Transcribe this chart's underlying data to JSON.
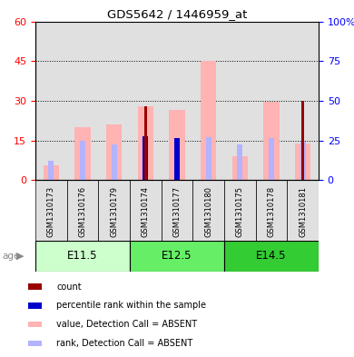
{
  "title": "GDS5642 / 1446959_at",
  "samples": [
    "GSM1310173",
    "GSM1310176",
    "GSM1310179",
    "GSM1310174",
    "GSM1310177",
    "GSM1310180",
    "GSM1310175",
    "GSM1310178",
    "GSM1310181"
  ],
  "age_groups": [
    {
      "label": "E11.5",
      "start": 0,
      "end": 3
    },
    {
      "label": "E12.5",
      "start": 3,
      "end": 6
    },
    {
      "label": "E14.5",
      "start": 6,
      "end": 9
    }
  ],
  "age_colors": [
    "#ccffcc",
    "#66ee66",
    "#33cc33"
  ],
  "pink_bars": [
    5.5,
    20.0,
    21.0,
    28.0,
    26.5,
    45.0,
    9.0,
    29.5,
    14.0
  ],
  "red_bars": [
    0.0,
    0.0,
    0.0,
    28.0,
    0.0,
    0.0,
    0.0,
    0.0,
    30.0
  ],
  "blue_bars_rank": [
    12.5,
    25.0,
    22.5,
    27.5,
    26.5,
    27.0,
    22.5,
    26.5,
    24.5
  ],
  "dark_blue_bars": [
    0.0,
    0.0,
    0.0,
    27.5,
    26.5,
    0.0,
    0.0,
    0.0,
    0.0
  ],
  "left_ylim": [
    0,
    60
  ],
  "left_yticks": [
    0,
    15,
    30,
    45,
    60
  ],
  "right_ylim": [
    0,
    100
  ],
  "right_yticks": [
    0,
    25,
    50,
    75,
    100
  ],
  "color_darkred": "#990000",
  "color_pink": "#ffb3b3",
  "color_blue": "#b3b3ff",
  "color_darkblue": "#0000cc",
  "col_bg": "#e0e0e0",
  "age_label_color": "#888888"
}
